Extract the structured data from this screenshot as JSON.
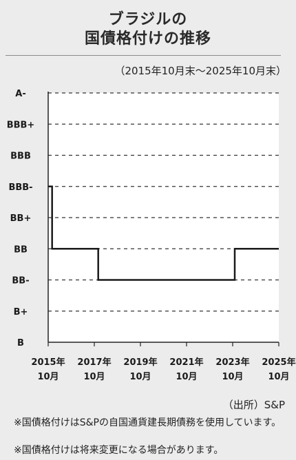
{
  "header": {
    "title_line1": "ブラジルの",
    "title_line2": "国債格付けの推移",
    "period": "（2015年10月末〜2025年10月末）"
  },
  "chart_data": {
    "type": "line",
    "title": "ブラジルの国債格付けの推移",
    "subtitle": "（2015年10月末〜2025年10月末）",
    "y_categories": [
      "B",
      "B+",
      "BB-",
      "BB",
      "BB+",
      "BBB-",
      "BBB",
      "BBB+",
      "A-"
    ],
    "x_ticks": [
      {
        "year": "2015年",
        "month": "10月",
        "x": 2015.83
      },
      {
        "year": "2017年",
        "month": "10月",
        "x": 2017.83
      },
      {
        "year": "2019年",
        "month": "10月",
        "x": 2019.83
      },
      {
        "year": "2021年",
        "month": "10月",
        "x": 2021.83
      },
      {
        "year": "2023年",
        "month": "10月",
        "x": 2023.83
      },
      {
        "year": "2025年",
        "month": "10月",
        "x": 2025.83
      }
    ],
    "xlim": [
      2015.83,
      2025.83
    ],
    "grid": true,
    "steps": [
      {
        "x": 2015.83,
        "rating": "BBB-"
      },
      {
        "x": 2016.0,
        "rating": "BB"
      },
      {
        "x": 2018.0,
        "rating": "BB-"
      },
      {
        "x": 2023.92,
        "rating": "BB"
      },
      {
        "x": 2025.83,
        "rating": "BB"
      }
    ]
  },
  "footer": {
    "source": "（出所）S&P",
    "note1": "※国債格付けはS&Pの自国通貨建長期債務を使用しています。",
    "note2": "※国債格付けは将来変更になる場合があります。"
  }
}
